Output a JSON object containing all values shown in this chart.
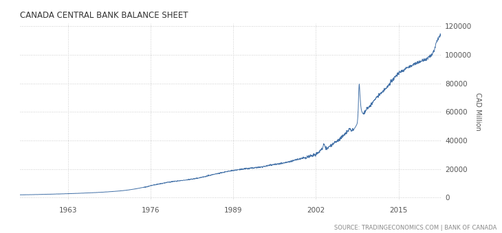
{
  "title": "CANADA CENTRAL BANK BALANCE SHEET",
  "ylabel": "CAD Million",
  "source_text": "SOURCE: TRADINGECONOMICS.COM | BANK OF CANADA",
  "line_color": "#4472a8",
  "background_color": "#ffffff",
  "grid_color": "#cccccc",
  "title_fontsize": 8.5,
  "ylabel_fontsize": 7,
  "source_fontsize": 6,
  "tick_fontsize": 7.5,
  "xlim": [
    1955.5,
    2021.8
  ],
  "ylim": [
    -2000,
    122000
  ],
  "yticks": [
    0,
    20000,
    40000,
    60000,
    80000,
    100000,
    120000
  ],
  "xticks": [
    1963,
    1976,
    1989,
    2002,
    2015
  ],
  "seed": 42,
  "noise_scale_early": 80,
  "noise_scale_mid": 300,
  "noise_scale_late": 800
}
